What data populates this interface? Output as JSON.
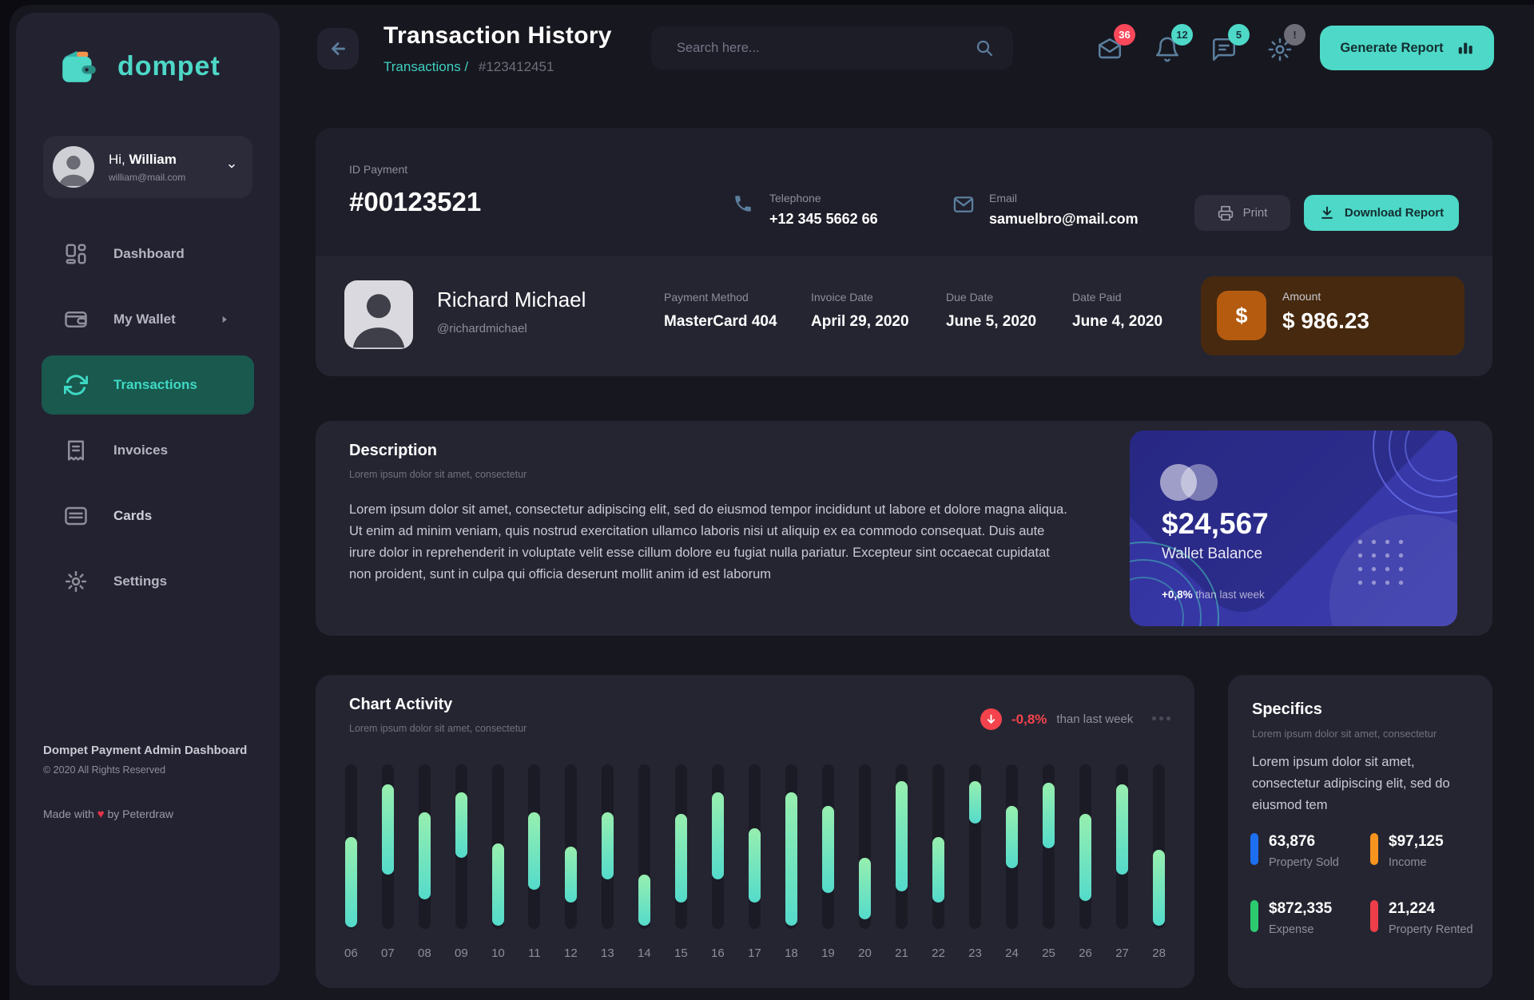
{
  "brand": {
    "name": "dompet"
  },
  "sidebar": {
    "user": {
      "greeting": "Hi,",
      "name": "William",
      "email": "william@mail.com"
    },
    "items": [
      {
        "label": "Dashboard"
      },
      {
        "label": "My Wallet"
      },
      {
        "label": "Transactions"
      },
      {
        "label": "Invoices"
      },
      {
        "label": "Cards"
      },
      {
        "label": "Settings"
      }
    ],
    "footer": {
      "title": "Dompet Payment Admin Dashboard",
      "copyright": "© 2020 All Rights Reserved",
      "credit_prefix": "Made with",
      "heart": "♥",
      "credit_suffix": "by Peterdraw"
    }
  },
  "header": {
    "title": "Transaction History",
    "breadcrumb_parent": "Transactions /",
    "breadcrumb_current": "#123412451",
    "search_placeholder": "Search here...",
    "badges": {
      "mail": "36",
      "bell": "12",
      "chat": "5",
      "gear": "!"
    },
    "generate_report": "Generate Report"
  },
  "payment": {
    "id_label": "ID Payment",
    "id_value": "#00123521",
    "phone_label": "Telephone",
    "phone_value": "+12 345 5662 66",
    "email_label": "Email",
    "email_value": "samuelbro@mail.com",
    "print_label": "Print",
    "download_label": "Download Report",
    "payer": {
      "name": "Richard Michael",
      "handle": "@richardmichael"
    },
    "fields": [
      {
        "label": "Payment Method",
        "value": "MasterCard 404"
      },
      {
        "label": "Invoice Date",
        "value": "April 29, 2020"
      },
      {
        "label": "Due Date",
        "value": "June 5, 2020"
      },
      {
        "label": "Date Paid",
        "value": "June 4, 2020"
      }
    ],
    "amount": {
      "label": "Amount",
      "value": "$ 986.23",
      "currency": "$"
    }
  },
  "description": {
    "title": "Description",
    "subtitle": "Lorem ipsum dolor sit amet, consectetur",
    "body": "Lorem ipsum dolor sit amet, consectetur adipiscing elit, sed do eiusmod tempor incididunt ut labore et dolore magna aliqua. Ut enim ad minim veniam, quis nostrud exercitation ullamco laboris nisi ut aliquip ex ea commodo consequat. Duis aute irure dolor in reprehenderit in voluptate velit esse cillum dolore eu fugiat nulla pariatur. Excepteur sint occaecat cupidatat non proident, sunt in culpa qui officia deserunt mollit anim id est laborum"
  },
  "wallet_card": {
    "balance": "$24,567",
    "label": "Wallet Balance",
    "delta": "+0,8%",
    "delta_note": "than last week"
  },
  "chart": {
    "title": "Chart Activity",
    "subtitle": "Lorem ipsum dolor sit amet, consectetur",
    "delta": "-0,8%",
    "delta_note": "than last week"
  },
  "chart_data": {
    "type": "bar",
    "title": "Chart Activity",
    "note": "Floating range bars; start/end are percent offsets from the top of the full-height track (0 = top, 100 = bottom).",
    "delta": "-0,8%",
    "delta_direction": "down",
    "comparison": "than last week",
    "x_categories": [
      "06",
      "07",
      "08",
      "09",
      "10",
      "11",
      "12",
      "13",
      "14",
      "15",
      "16",
      "17",
      "18",
      "19",
      "20",
      "21",
      "22",
      "23",
      "24",
      "25",
      "26",
      "27",
      "28"
    ],
    "bars": [
      {
        "day": "06",
        "start": 44,
        "end": 99
      },
      {
        "day": "07",
        "start": 12,
        "end": 67
      },
      {
        "day": "08",
        "start": 29,
        "end": 82
      },
      {
        "day": "09",
        "start": 17,
        "end": 57
      },
      {
        "day": "10",
        "start": 48,
        "end": 98
      },
      {
        "day": "11",
        "start": 29,
        "end": 76
      },
      {
        "day": "12",
        "start": 50,
        "end": 84
      },
      {
        "day": "13",
        "start": 29,
        "end": 70
      },
      {
        "day": "14",
        "start": 67,
        "end": 98
      },
      {
        "day": "15",
        "start": 30,
        "end": 84
      },
      {
        "day": "16",
        "start": 17,
        "end": 70
      },
      {
        "day": "17",
        "start": 39,
        "end": 84
      },
      {
        "day": "18",
        "start": 17,
        "end": 98
      },
      {
        "day": "19",
        "start": 25,
        "end": 78
      },
      {
        "day": "20",
        "start": 57,
        "end": 94
      },
      {
        "day": "21",
        "start": 10,
        "end": 77
      },
      {
        "day": "22",
        "start": 44,
        "end": 84
      },
      {
        "day": "23",
        "start": 10,
        "end": 36
      },
      {
        "day": "24",
        "start": 25,
        "end": 63
      },
      {
        "day": "25",
        "start": 11,
        "end": 51
      },
      {
        "day": "26",
        "start": 30,
        "end": 83
      },
      {
        "day": "27",
        "start": 12,
        "end": 67
      },
      {
        "day": "28",
        "start": 52,
        "end": 98
      }
    ]
  },
  "specifics": {
    "title": "Specifics",
    "subtitle": "Lorem ipsum dolor sit amet, consectetur",
    "body": "Lorem ipsum dolor sit amet, consectetur adipiscing elit, sed do eiusmod tem",
    "stats": [
      {
        "value": "63,876",
        "label": "Property Sold",
        "color": "#1d6ff2"
      },
      {
        "value": "$97,125",
        "label": "Income",
        "color": "#f7941d"
      },
      {
        "value": "$872,335",
        "label": "Expense",
        "color": "#2dcb70"
      },
      {
        "value": "21,224",
        "label": "Property Rented",
        "color": "#ef3e49"
      }
    ]
  },
  "colors": {
    "accent": "#4dd8c7",
    "active_nav_bg": "#19594e",
    "badge_red": "#f9485a",
    "negative": "#f4434c",
    "wallet_indigo": "#32329e",
    "amount_bg": "#46290e",
    "amount_icon_bg": "#b45b10"
  }
}
